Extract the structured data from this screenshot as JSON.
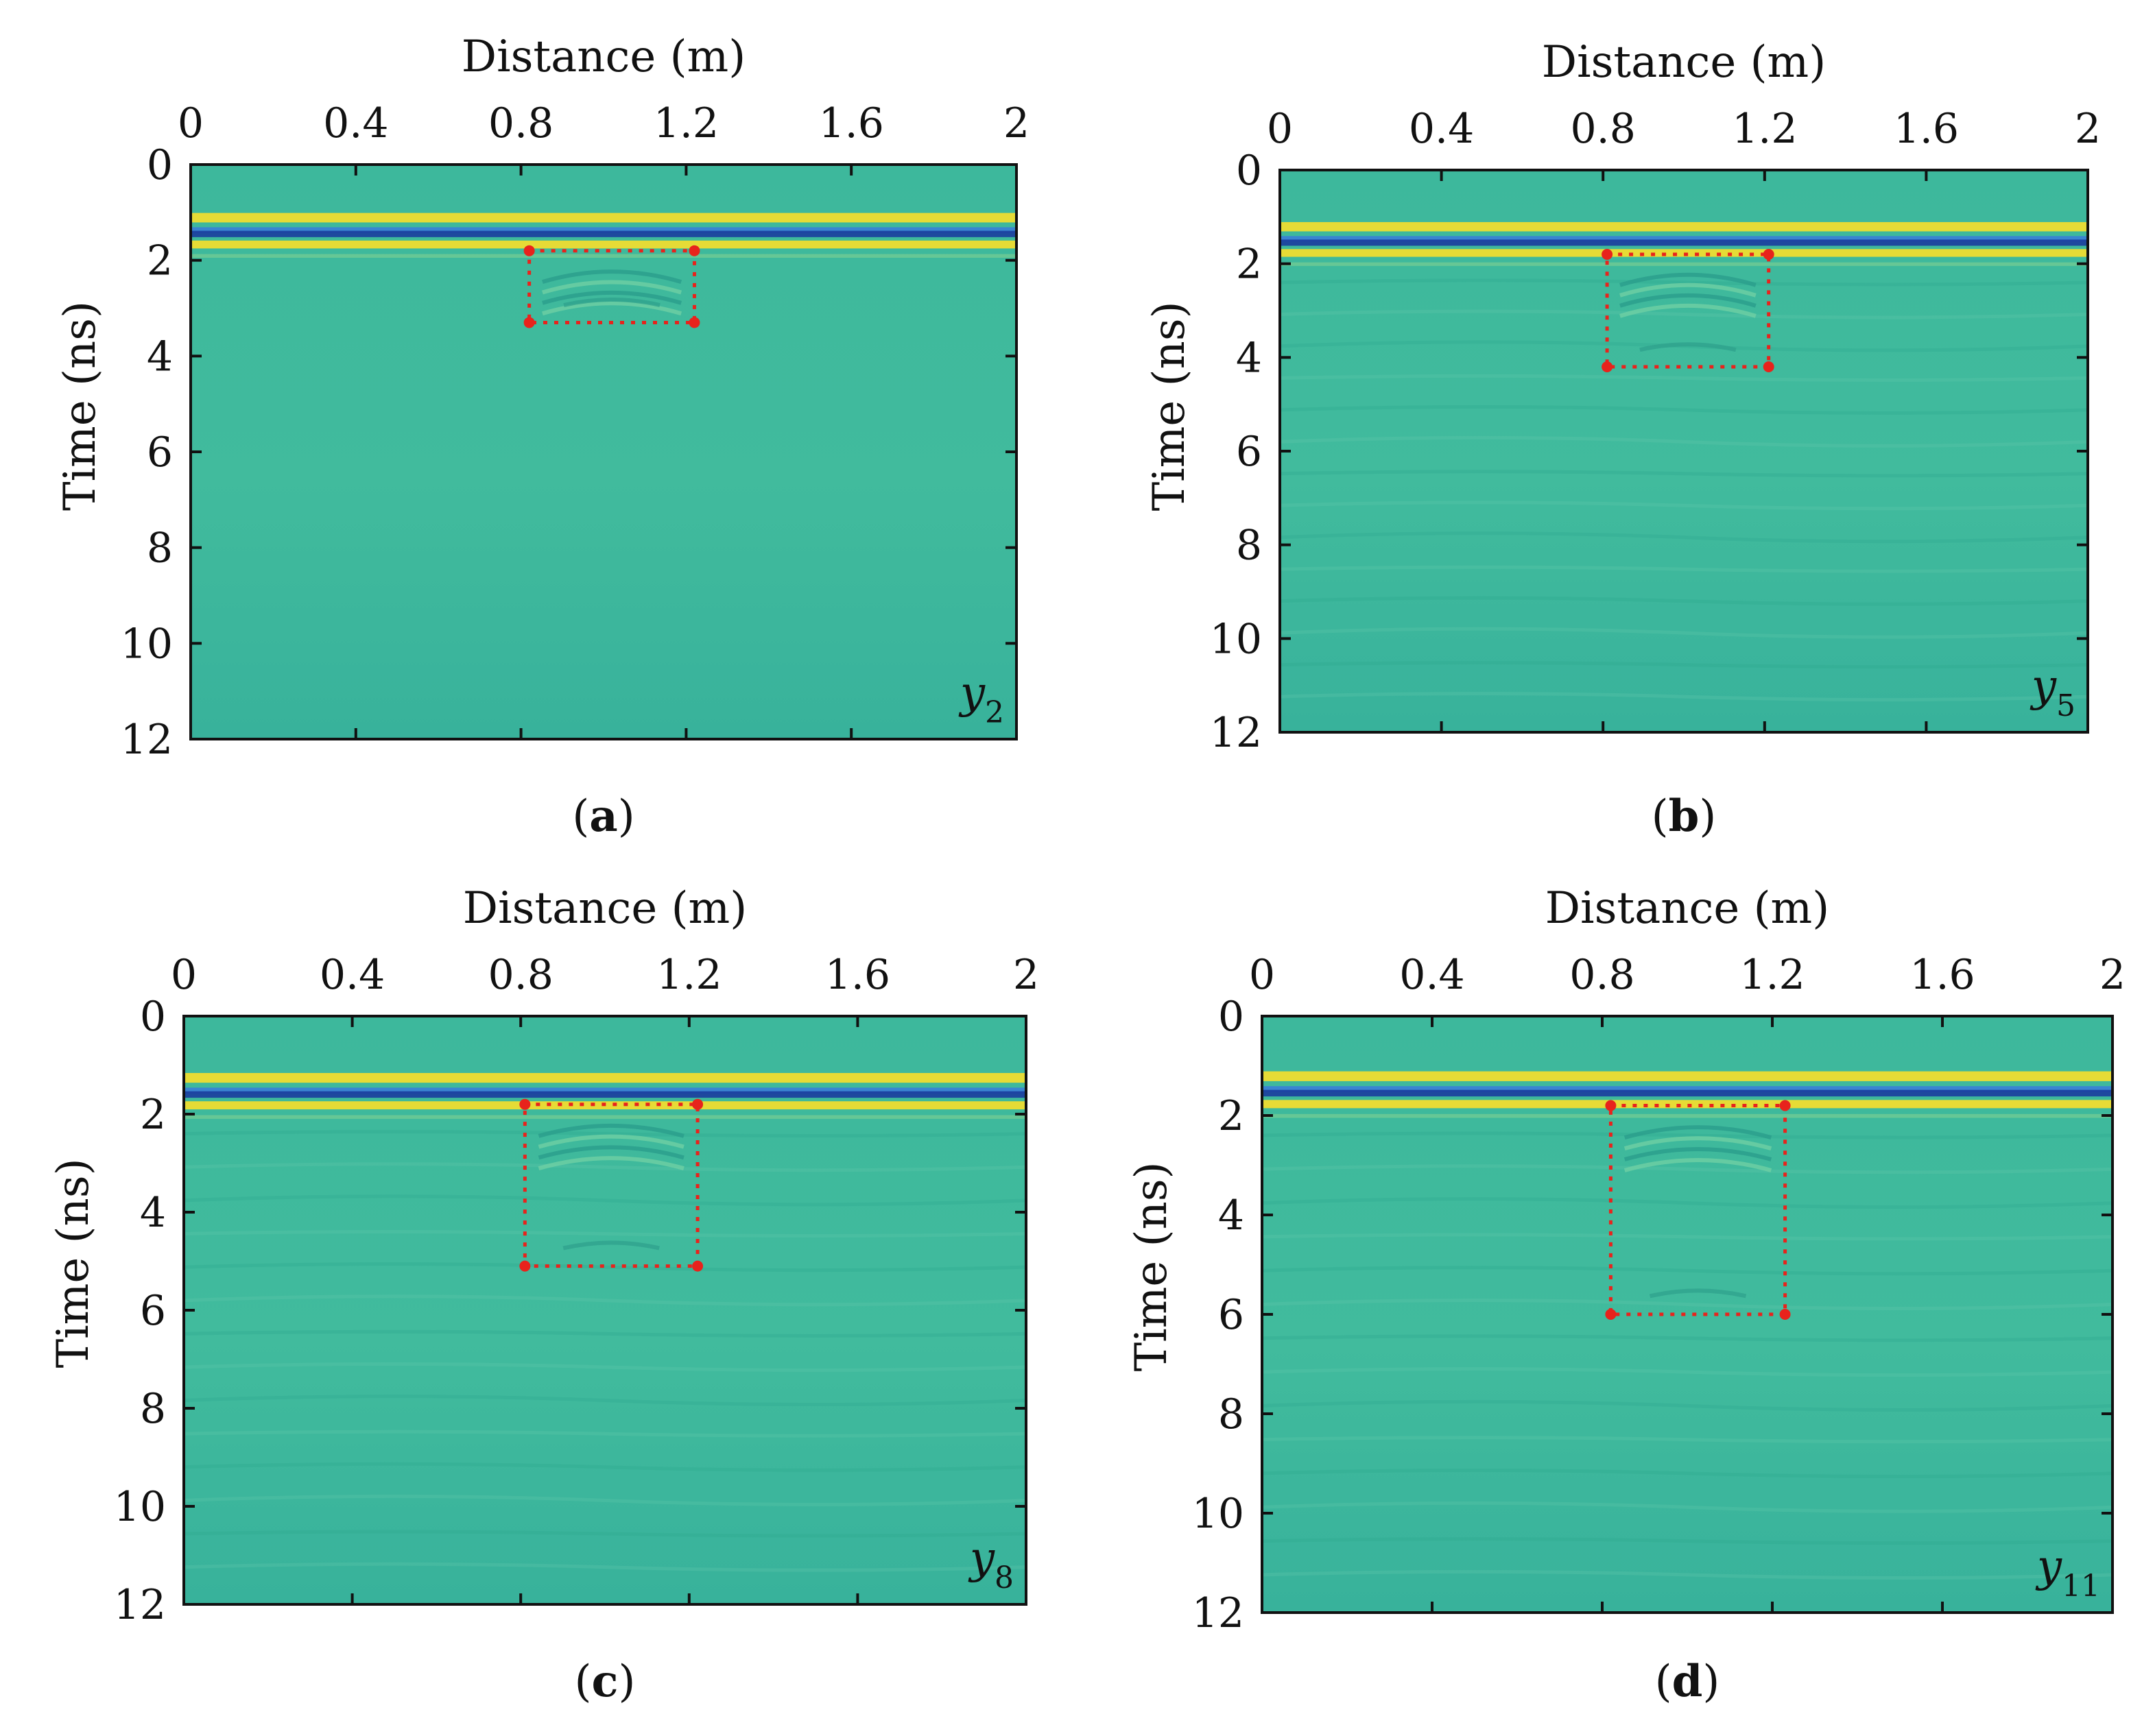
{
  "figure": {
    "colors": {
      "background_field": "#3db89c",
      "band_yellow": "#f4dd2e",
      "band_blue": "#1b3f9e",
      "band_mid_blue": "#3a7fd6",
      "box_red": "#e8231c",
      "axis": "#111111"
    }
  },
  "chart_data": [
    {
      "type": "heatmap",
      "panel": "a",
      "panel_label": "a",
      "series_label": "y",
      "series_subscript": "2",
      "xlabel": "Distance (m)",
      "ylabel": "Time (ns)",
      "xlim": [
        0,
        2
      ],
      "ylim": [
        12,
        0
      ],
      "xticks": [
        0,
        0.4,
        0.8,
        1.2,
        1.6,
        2
      ],
      "xtick_labels": [
        "0",
        "0.4",
        "0.8",
        "1.2",
        "1.6",
        "2"
      ],
      "yticks": [
        0,
        2,
        4,
        6,
        8,
        10,
        12
      ],
      "ytick_labels": [
        "0",
        "2",
        "4",
        "6",
        "8",
        "10",
        "12"
      ],
      "surface_reflection_ns": 1.25,
      "target_box": {
        "x": [
          0.82,
          1.22
        ],
        "t": [
          1.8,
          3.3
        ]
      }
    },
    {
      "type": "heatmap",
      "panel": "b",
      "panel_label": "b",
      "series_label": "y",
      "series_subscript": "5",
      "xlabel": "Distance (m)",
      "ylabel": "Time (ns)",
      "xlim": [
        0,
        2
      ],
      "ylim": [
        12,
        0
      ],
      "xticks": [
        0,
        0.4,
        0.8,
        1.2,
        1.6,
        2
      ],
      "xtick_labels": [
        "0",
        "0.4",
        "0.8",
        "1.2",
        "1.6",
        "2"
      ],
      "yticks": [
        0,
        2,
        4,
        6,
        8,
        10,
        12
      ],
      "ytick_labels": [
        "0",
        "2",
        "4",
        "6",
        "8",
        "10",
        "12"
      ],
      "surface_reflection_ns": 1.35,
      "target_box": {
        "x": [
          0.81,
          1.21
        ],
        "t": [
          1.8,
          4.2
        ]
      }
    },
    {
      "type": "heatmap",
      "panel": "c",
      "panel_label": "c",
      "series_label": "y",
      "series_subscript": "8",
      "xlabel": "Distance (m)",
      "ylabel": "Time (ns)",
      "xlim": [
        0,
        2
      ],
      "ylim": [
        12,
        0
      ],
      "xticks": [
        0,
        0.4,
        0.8,
        1.2,
        1.6,
        2
      ],
      "xtick_labels": [
        "0",
        "0.4",
        "0.8",
        "1.2",
        "1.6",
        "2"
      ],
      "yticks": [
        0,
        2,
        4,
        6,
        8,
        10,
        12
      ],
      "ytick_labels": [
        "0",
        "2",
        "4",
        "6",
        "8",
        "10",
        "12"
      ],
      "surface_reflection_ns": 1.4,
      "target_box": {
        "x": [
          0.81,
          1.22
        ],
        "t": [
          1.8,
          5.1
        ]
      }
    },
    {
      "type": "heatmap",
      "panel": "d",
      "panel_label": "d",
      "series_label": "y",
      "series_subscript": "11",
      "xlabel": "Distance (m)",
      "ylabel": "Time (ns)",
      "xlim": [
        0,
        2
      ],
      "ylim": [
        12,
        0
      ],
      "xticks": [
        0,
        0.4,
        0.8,
        1.2,
        1.6,
        2
      ],
      "xtick_labels": [
        "0",
        "0.4",
        "0.8",
        "1.2",
        "1.6",
        "2"
      ],
      "yticks": [
        0,
        2,
        4,
        6,
        8,
        10,
        12
      ],
      "ytick_labels": [
        "0",
        "2",
        "4",
        "6",
        "8",
        "10",
        "12"
      ],
      "surface_reflection_ns": 1.35,
      "target_box": {
        "x": [
          0.82,
          1.23
        ],
        "t": [
          1.8,
          6.0
        ]
      }
    }
  ]
}
